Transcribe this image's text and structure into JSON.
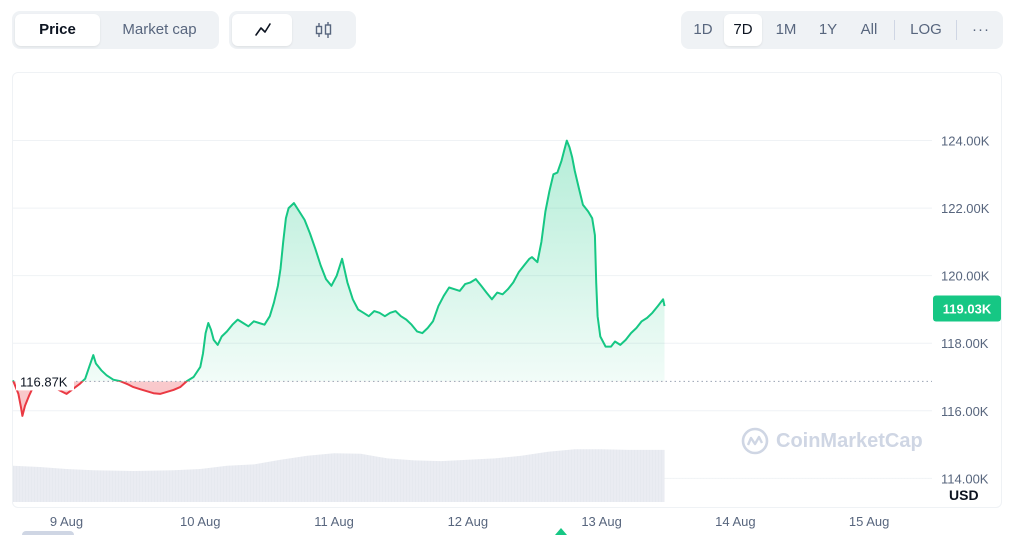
{
  "metric_tabs": [
    {
      "label": "Price",
      "active": true
    },
    {
      "label": "Market cap",
      "active": false
    }
  ],
  "chart_type_toggle": [
    {
      "icon": "line-chart-icon",
      "active": true
    },
    {
      "icon": "candlestick-icon",
      "active": false
    }
  ],
  "range_tabs": [
    {
      "label": "1D",
      "active": false
    },
    {
      "label": "7D",
      "active": true
    },
    {
      "label": "1M",
      "active": false
    },
    {
      "label": "1Y",
      "active": false
    },
    {
      "label": "All",
      "active": false
    }
  ],
  "log_label": "LOG",
  "more_label": "···",
  "watermark": "CoinMarketCap",
  "colors": {
    "up": "#16c784",
    "down": "#ea3943",
    "grid": "#eff2f5",
    "text": "#58667e"
  },
  "chart_data": {
    "type": "line",
    "currency_label": "USD",
    "reference_value": 116870,
    "reference_label": "116.87K",
    "current_value": 119030,
    "current_label": "119.03K",
    "y_ticks": [
      {
        "value": 114000,
        "label": "114.00K"
      },
      {
        "value": 116000,
        "label": "116.00K"
      },
      {
        "value": 118000,
        "label": "118.00K"
      },
      {
        "value": 120000,
        "label": "120.00K"
      },
      {
        "value": 122000,
        "label": "122.00K"
      },
      {
        "value": 124000,
        "label": "124.00K"
      }
    ],
    "ylim": [
      113300,
      126000
    ],
    "x_ticks": [
      "9 Aug",
      "10 Aug",
      "11 Aug",
      "12 Aug",
      "13 Aug",
      "14 Aug",
      "15 Aug"
    ],
    "x_range_days": [
      8.6,
      15.47
    ],
    "price_series": [
      [
        8.6,
        116900
      ],
      [
        8.62,
        116700
      ],
      [
        8.64,
        116500
      ],
      [
        8.66,
        116100
      ],
      [
        8.67,
        115850
      ],
      [
        8.69,
        116150
      ],
      [
        8.72,
        116450
      ],
      [
        8.75,
        116700
      ],
      [
        8.78,
        116850
      ],
      [
        8.8,
        116950
      ],
      [
        8.85,
        116820
      ],
      [
        8.9,
        116720
      ],
      [
        8.95,
        116600
      ],
      [
        9.0,
        116500
      ],
      [
        9.05,
        116650
      ],
      [
        9.1,
        116800
      ],
      [
        9.14,
        116950
      ],
      [
        9.17,
        117300
      ],
      [
        9.2,
        117650
      ],
      [
        9.22,
        117400
      ],
      [
        9.26,
        117200
      ],
      [
        9.3,
        117050
      ],
      [
        9.35,
        116920
      ],
      [
        9.4,
        116880
      ],
      [
        9.45,
        116800
      ],
      [
        9.5,
        116700
      ],
      [
        9.55,
        116640
      ],
      [
        9.6,
        116580
      ],
      [
        9.65,
        116520
      ],
      [
        9.7,
        116500
      ],
      [
        9.75,
        116560
      ],
      [
        9.8,
        116620
      ],
      [
        9.85,
        116700
      ],
      [
        9.9,
        116880
      ],
      [
        9.95,
        117000
      ],
      [
        10.0,
        117300
      ],
      [
        10.02,
        117700
      ],
      [
        10.04,
        118300
      ],
      [
        10.06,
        118600
      ],
      [
        10.08,
        118400
      ],
      [
        10.1,
        118100
      ],
      [
        10.13,
        117950
      ],
      [
        10.16,
        118200
      ],
      [
        10.2,
        118350
      ],
      [
        10.24,
        118550
      ],
      [
        10.28,
        118700
      ],
      [
        10.32,
        118600
      ],
      [
        10.36,
        118500
      ],
      [
        10.4,
        118650
      ],
      [
        10.44,
        118600
      ],
      [
        10.48,
        118550
      ],
      [
        10.52,
        118800
      ],
      [
        10.55,
        119200
      ],
      [
        10.58,
        119700
      ],
      [
        10.6,
        120200
      ],
      [
        10.62,
        121000
      ],
      [
        10.64,
        121700
      ],
      [
        10.66,
        122000
      ],
      [
        10.7,
        122150
      ],
      [
        10.74,
        121900
      ],
      [
        10.78,
        121650
      ],
      [
        10.82,
        121250
      ],
      [
        10.86,
        120800
      ],
      [
        10.9,
        120300
      ],
      [
        10.94,
        119900
      ],
      [
        10.98,
        119700
      ],
      [
        11.02,
        120000
      ],
      [
        11.06,
        120500
      ],
      [
        11.1,
        119800
      ],
      [
        11.14,
        119300
      ],
      [
        11.18,
        119000
      ],
      [
        11.22,
        118900
      ],
      [
        11.26,
        118800
      ],
      [
        11.3,
        118950
      ],
      [
        11.34,
        118900
      ],
      [
        11.38,
        118800
      ],
      [
        11.42,
        118900
      ],
      [
        11.46,
        118950
      ],
      [
        11.5,
        118800
      ],
      [
        11.54,
        118700
      ],
      [
        11.58,
        118550
      ],
      [
        11.62,
        118350
      ],
      [
        11.66,
        118300
      ],
      [
        11.7,
        118450
      ],
      [
        11.74,
        118650
      ],
      [
        11.78,
        119100
      ],
      [
        11.82,
        119400
      ],
      [
        11.86,
        119650
      ],
      [
        11.9,
        119600
      ],
      [
        11.94,
        119550
      ],
      [
        11.98,
        119750
      ],
      [
        12.02,
        119800
      ],
      [
        12.06,
        119900
      ],
      [
        12.1,
        119700
      ],
      [
        12.14,
        119500
      ],
      [
        12.18,
        119300
      ],
      [
        12.22,
        119500
      ],
      [
        12.26,
        119450
      ],
      [
        12.3,
        119600
      ],
      [
        12.34,
        119800
      ],
      [
        12.38,
        120100
      ],
      [
        12.42,
        120300
      ],
      [
        12.46,
        120500
      ],
      [
        12.48,
        120550
      ],
      [
        12.52,
        120400
      ],
      [
        12.55,
        121000
      ],
      [
        12.58,
        121900
      ],
      [
        12.61,
        122500
      ],
      [
        12.64,
        123000
      ],
      [
        12.67,
        123050
      ],
      [
        12.7,
        123400
      ],
      [
        12.72,
        123700
      ],
      [
        12.74,
        124000
      ],
      [
        12.76,
        123800
      ],
      [
        12.78,
        123500
      ],
      [
        12.8,
        123100
      ],
      [
        12.83,
        122600
      ],
      [
        12.86,
        122100
      ],
      [
        12.9,
        121900
      ],
      [
        12.93,
        121700
      ],
      [
        12.95,
        121200
      ],
      [
        12.96,
        119800
      ],
      [
        12.97,
        118800
      ],
      [
        12.99,
        118200
      ],
      [
        13.03,
        117900
      ],
      [
        13.07,
        117900
      ],
      [
        13.1,
        118050
      ],
      [
        13.14,
        117950
      ],
      [
        13.18,
        118100
      ],
      [
        13.22,
        118300
      ],
      [
        13.26,
        118450
      ],
      [
        13.3,
        118650
      ],
      [
        13.34,
        118750
      ],
      [
        13.38,
        118900
      ],
      [
        13.42,
        119100
      ],
      [
        13.46,
        119300
      ],
      [
        13.47,
        119100
      ]
    ],
    "volume_series": [
      [
        8.6,
        0.55
      ],
      [
        8.8,
        0.53
      ],
      [
        9.0,
        0.5
      ],
      [
        9.2,
        0.48
      ],
      [
        9.5,
        0.47
      ],
      [
        9.8,
        0.48
      ],
      [
        10.0,
        0.5
      ],
      [
        10.2,
        0.55
      ],
      [
        10.4,
        0.57
      ],
      [
        10.6,
        0.64
      ],
      [
        10.8,
        0.7
      ],
      [
        11.0,
        0.74
      ],
      [
        11.2,
        0.73
      ],
      [
        11.4,
        0.66
      ],
      [
        11.6,
        0.63
      ],
      [
        11.8,
        0.62
      ],
      [
        12.0,
        0.64
      ],
      [
        12.2,
        0.66
      ],
      [
        12.4,
        0.7
      ],
      [
        12.6,
        0.76
      ],
      [
        12.8,
        0.8
      ],
      [
        13.0,
        0.8
      ],
      [
        13.2,
        0.79
      ],
      [
        13.47,
        0.79
      ]
    ]
  }
}
